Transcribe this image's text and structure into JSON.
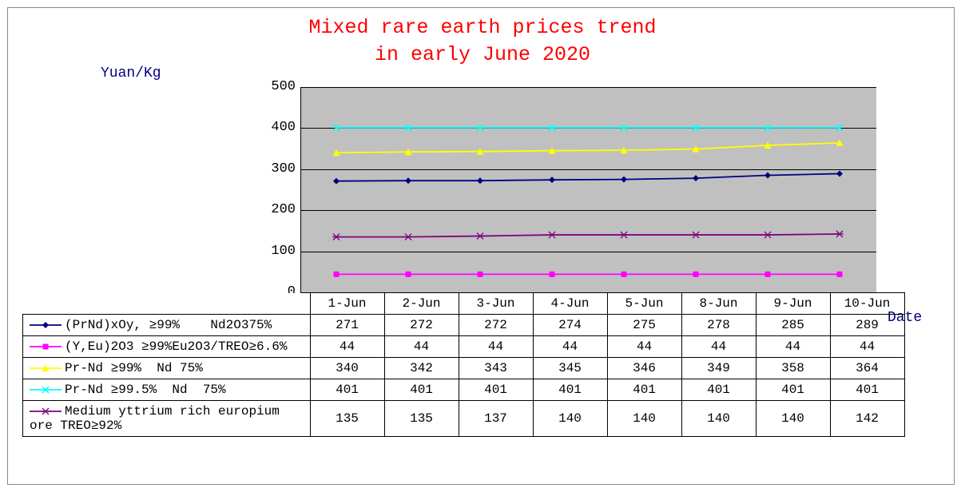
{
  "title_line1": "Mixed rare earth prices trend",
  "title_line2": "in early June 2020",
  "ylabel": "Yuan/Kg",
  "xlabel": "Date",
  "title_color": "#ff0000",
  "axis_label_color": "#000080",
  "plot_background": "#c0c0c0",
  "grid_color": "#000000",
  "border_color": "#888888",
  "chart": {
    "type": "line-with-table",
    "ylim": [
      0,
      500
    ],
    "ytick_step": 100,
    "yticks": [
      "0",
      "100",
      "200",
      "300",
      "400",
      "500"
    ],
    "dates": [
      "1-Jun",
      "2-Jun",
      "3-Jun",
      "4-Jun",
      "5-Jun",
      "8-Jun",
      "9-Jun",
      "10-Jun"
    ]
  },
  "series": [
    {
      "label": "(PrNd)xOy, ≥99%    Nd2O375%",
      "color": "#000080",
      "marker": "diamond",
      "values": [
        271,
        272,
        272,
        274,
        275,
        278,
        285,
        289
      ]
    },
    {
      "label": "(Y,Eu)2O3 ≥99%Eu2O3/TREO≥6.6%",
      "color": "#ff00ff",
      "marker": "square",
      "values": [
        44,
        44,
        44,
        44,
        44,
        44,
        44,
        44
      ]
    },
    {
      "label": "Pr-Nd ≥99%  Nd 75%",
      "color": "#ffff00",
      "marker": "triangle",
      "values": [
        340,
        342,
        343,
        345,
        346,
        349,
        358,
        364
      ]
    },
    {
      "label": "Pr-Nd ≥99.5%  Nd  75%",
      "color": "#00ffff",
      "marker": "x",
      "values": [
        401,
        401,
        401,
        401,
        401,
        401,
        401,
        401
      ]
    },
    {
      "label": "Medium yttrium rich europium ore TREO≥92%",
      "color": "#800080",
      "marker": "star",
      "values": [
        135,
        135,
        137,
        140,
        140,
        140,
        140,
        142
      ]
    }
  ]
}
